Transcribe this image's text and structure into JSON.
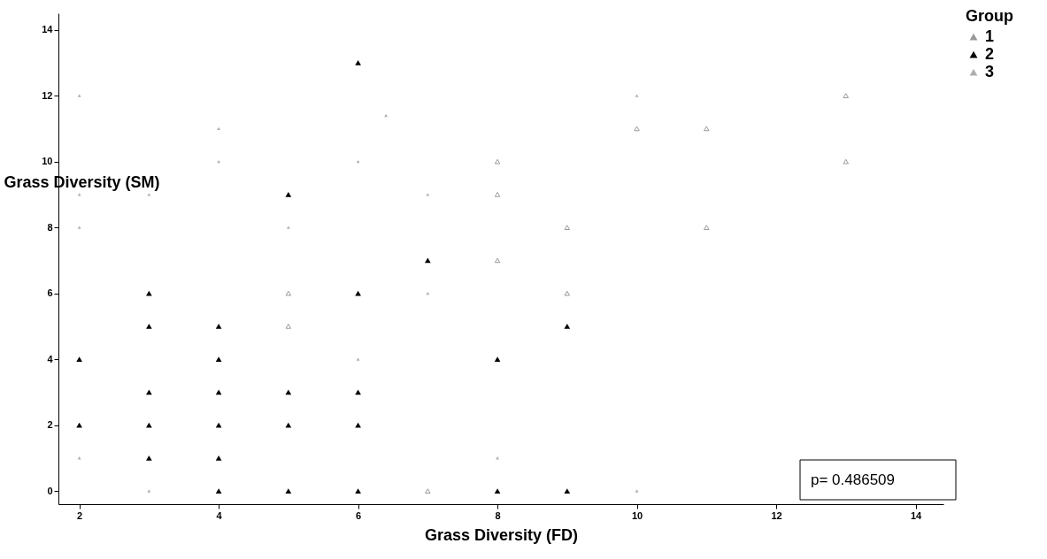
{
  "chart_data": {
    "type": "scatter",
    "xlabel": "Grass Diversity (FD)",
    "ylabel": "Grass Diversity (SM)",
    "legend_title": "Group",
    "legend": "top right",
    "marker": "triangle",
    "grid": false,
    "xlim": [
      1.7,
      14.4
    ],
    "ylim": [
      -0.4,
      14.5
    ],
    "xticks": [
      2,
      4,
      6,
      8,
      10,
      12,
      14
    ],
    "yticks": [
      0,
      2,
      4,
      6,
      8,
      10,
      12,
      14
    ],
    "annotations": [
      "p= 0.486509"
    ],
    "series": [
      {
        "name": "1",
        "color": "#9a9a9a",
        "x": [
          5,
          5,
          7,
          8,
          8,
          8,
          9,
          9,
          10,
          11,
          11,
          13,
          13
        ],
        "values": [
          6,
          5,
          0,
          10,
          9,
          7,
          8,
          6,
          11,
          11,
          8,
          12,
          10
        ]
      },
      {
        "name": "2",
        "color": "#000000",
        "x": [
          2,
          2,
          3,
          3,
          3,
          3,
          3,
          4,
          4,
          4,
          4,
          4,
          4,
          5,
          5,
          5,
          5,
          6,
          6,
          6,
          6,
          6,
          7,
          8,
          8,
          9,
          9
        ],
        "values": [
          4,
          2,
          6,
          5,
          3,
          2,
          1,
          5,
          4,
          3,
          2,
          1,
          0,
          9,
          3,
          2,
          0,
          13,
          6,
          3,
          2,
          0,
          7,
          4,
          0,
          5,
          0
        ]
      },
      {
        "name": "3",
        "color": "#b0b0b0",
        "x": [
          2,
          2,
          2,
          2,
          3,
          3,
          4,
          4,
          5,
          6,
          6,
          6.4,
          7,
          7,
          8,
          10,
          10
        ],
        "values": [
          12,
          9,
          8,
          1,
          9,
          0,
          11,
          10,
          8,
          10,
          4,
          11.4,
          9,
          6,
          1,
          0,
          12
        ]
      }
    ]
  }
}
